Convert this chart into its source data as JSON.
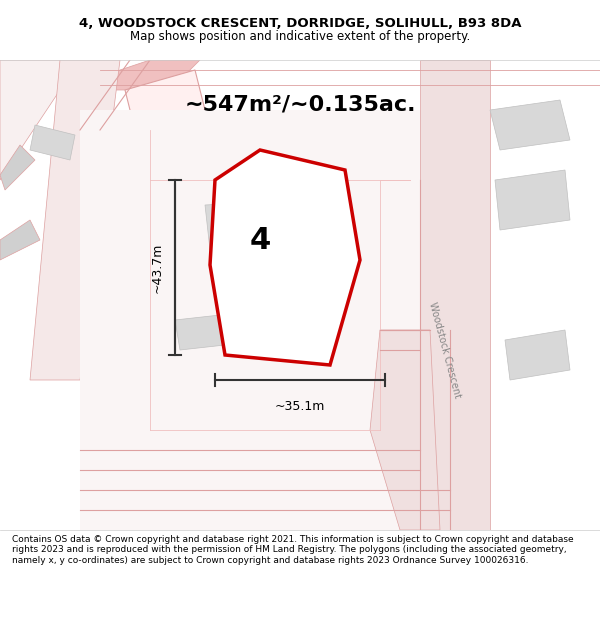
{
  "title_line1": "4, WOODSTOCK CRESCENT, DORRIDGE, SOLIHULL, B93 8DA",
  "title_line2": "Map shows position and indicative extent of the property.",
  "area_text": "~547m²/~0.135ac.",
  "label_number": "4",
  "dim_vertical": "~43.7m",
  "dim_horizontal": "~35.1m",
  "footer_text": "Contains OS data © Crown copyright and database right 2021. This information is subject to Crown copyright and database rights 2023 and is reproduced with the permission of HM Land Registry. The polygons (including the associated geometry, namely x, y co-ordinates) are subject to Crown copyright and database rights 2023 Ordnance Survey 100026316.",
  "bg_color": "#f5f0f0",
  "map_bg": "#ffffff",
  "polygon_color": "#cc0000",
  "polygon_fill": "#ffffff",
  "dim_color": "#333333",
  "road_label": "Woodstock Crescent",
  "title_bg": "#ffffff",
  "footer_bg": "#ffffff"
}
